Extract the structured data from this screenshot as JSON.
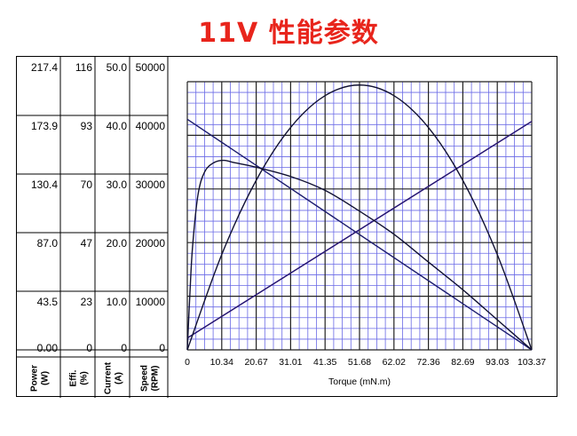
{
  "title": "11V 性能参数",
  "chart_data": {
    "type": "line",
    "xlabel": "Torque (mN.m)",
    "x_ticks": [
      "0",
      "10.34",
      "20.67",
      "31.01",
      "41.35",
      "51.68",
      "62.02",
      "72.36",
      "82.69",
      "93.03",
      "103.37"
    ],
    "xlim": [
      0,
      103.37
    ],
    "y_axes": [
      {
        "name": "Power",
        "unit": "(W)",
        "ticks": [
          "217.4",
          "173.9",
          "130.4",
          "87.0",
          "43.5",
          "0.00"
        ],
        "max": 217.4
      },
      {
        "name": "Effi.",
        "unit": "(%)",
        "ticks": [
          "116",
          "93",
          "70",
          "47",
          "23",
          "0"
        ],
        "max": 116
      },
      {
        "name": "Current",
        "unit": "(A)",
        "ticks": [
          "50.0",
          "40.0",
          "30.0",
          "20.0",
          "10.0",
          "0"
        ],
        "max": 50.0
      },
      {
        "name": "Speed",
        "unit": "(RPM)",
        "ticks": [
          "50000",
          "40000",
          "30000",
          "20000",
          "10000",
          "0"
        ],
        "max": 50000
      }
    ],
    "grid": true,
    "series": [
      {
        "axis": "Speed",
        "color": "#1c1c6e",
        "x": [
          0,
          103.37
        ],
        "y": [
          43000,
          0
        ]
      },
      {
        "axis": "Current",
        "color": "#d018c8",
        "x": [
          0,
          103.37
        ],
        "y": [
          2.2,
          42.6
        ]
      },
      {
        "axis": "Current",
        "color": "#1c1c6e",
        "x": [
          0,
          103.37
        ],
        "y": [
          2.2,
          42.6
        ]
      },
      {
        "axis": "Power",
        "color": "#111133",
        "x": [
          0,
          10.34,
          20.67,
          31.01,
          41.35,
          51.68,
          62.02,
          72.36,
          82.69,
          93.03,
          103.37
        ],
        "y": [
          0,
          77.3,
          137.4,
          180.3,
          206.1,
          214.7,
          206.1,
          180.3,
          137.4,
          77.3,
          0
        ]
      },
      {
        "axis": "Effi.",
        "color": "#111133",
        "x": [
          0,
          0.8,
          1.6,
          3.2,
          5.2,
          8.0,
          11.0,
          14.0,
          20.67,
          31.01,
          41.35,
          51.68,
          62.02,
          72.36,
          82.69,
          93.03,
          103.37
        ],
        "y": [
          0,
          25,
          45,
          67,
          77,
          81,
          82,
          81,
          79,
          75,
          69,
          60,
          50,
          38,
          26,
          13,
          0
        ]
      }
    ]
  }
}
